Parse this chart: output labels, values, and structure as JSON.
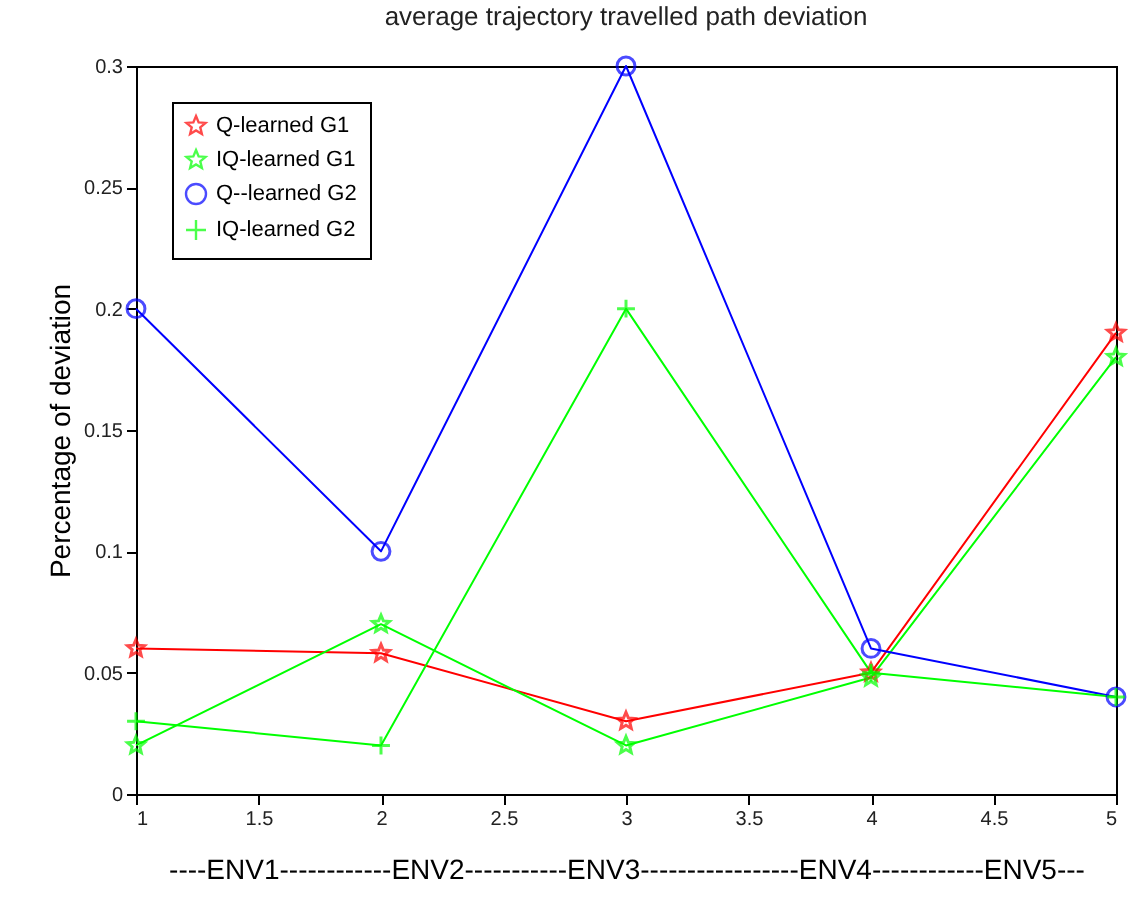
{
  "chart_data": {
    "type": "line",
    "title": "average trajectory travelled path deviation",
    "xlabel": "----ENV1------------ENV2-----------ENV3-----------------ENV4------------ENV5---",
    "ylabel": "Percentage of deviation",
    "x": [
      1,
      2,
      3,
      4,
      5
    ],
    "series": [
      {
        "name": "Q-learned G1",
        "color": "#ff0000",
        "marker": "star",
        "values": [
          0.06,
          0.058,
          0.03,
          0.05,
          0.19
        ]
      },
      {
        "name": "IQ-learned G1",
        "color": "#00ff00",
        "marker": "star",
        "values": [
          0.02,
          0.07,
          0.02,
          0.048,
          0.18
        ]
      },
      {
        "name": "Q--learned G2",
        "color": "#0000ff",
        "marker": "circle",
        "values": [
          0.2,
          0.1,
          0.3,
          0.06,
          0.04
        ]
      },
      {
        "name": "IQ-learned G2",
        "color": "#00ff00",
        "marker": "cross",
        "values": [
          0.03,
          0.02,
          0.2,
          0.05,
          0.04
        ]
      }
    ],
    "xlim": [
      1,
      5
    ],
    "xticks": [
      1,
      1.5,
      2,
      2.5,
      3,
      3.5,
      4,
      4.5,
      5
    ],
    "ylim": [
      0,
      0.3
    ],
    "yticks": [
      0,
      0.05,
      0.1,
      0.15,
      0.2,
      0.25,
      0.3
    ],
    "grid": false,
    "legend": "top left",
    "line_style": "solid"
  }
}
